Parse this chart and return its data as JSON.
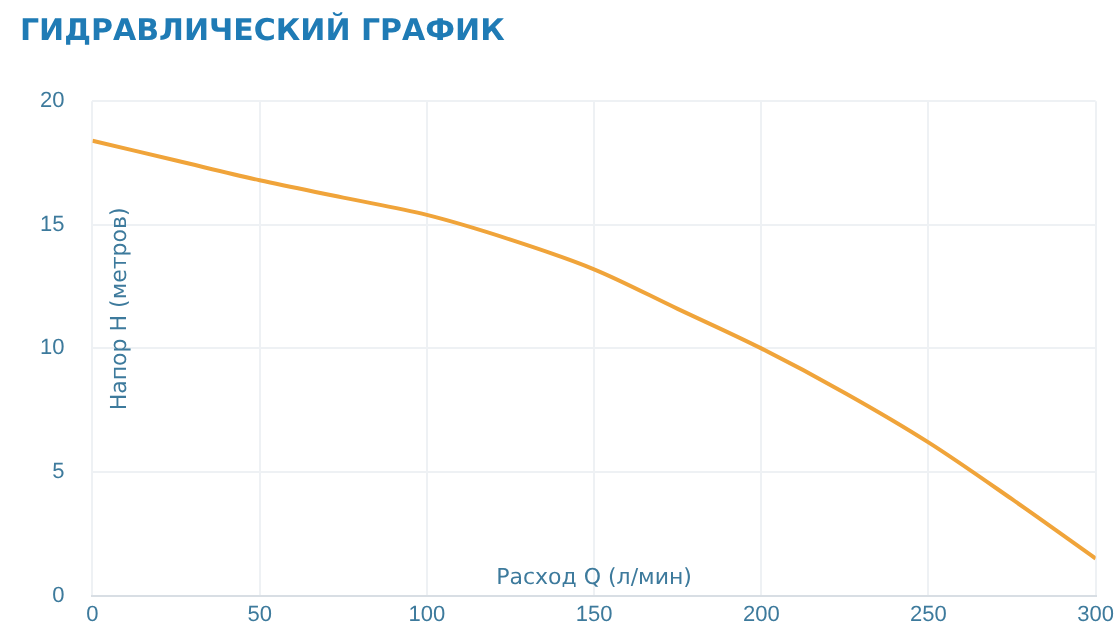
{
  "chart_data": {
    "type": "line",
    "title": "ГИДРАВЛИЧЕСКИЙ ГРАФИК",
    "xlabel": "Расход Q (л/мин)",
    "ylabel": "Напор H (метров)",
    "x": [
      0,
      25,
      50,
      75,
      100,
      125,
      150,
      175,
      200,
      225,
      250,
      275,
      300
    ],
    "series": [
      {
        "color": "#f0a43a",
        "values": [
          18.4,
          17.6,
          16.8,
          16.1,
          15.4,
          14.4,
          13.2,
          11.6,
          10.0,
          8.2,
          6.2,
          3.9,
          1.5
        ]
      }
    ],
    "xlim": [
      0,
      300
    ],
    "xticks": [
      0,
      50,
      100,
      150,
      200,
      250,
      300
    ],
    "ylim": [
      0,
      20
    ],
    "yticks": [
      0,
      5,
      10,
      15,
      20
    ],
    "grid": true,
    "legend": false,
    "marker": "none",
    "line_style": "solid"
  }
}
